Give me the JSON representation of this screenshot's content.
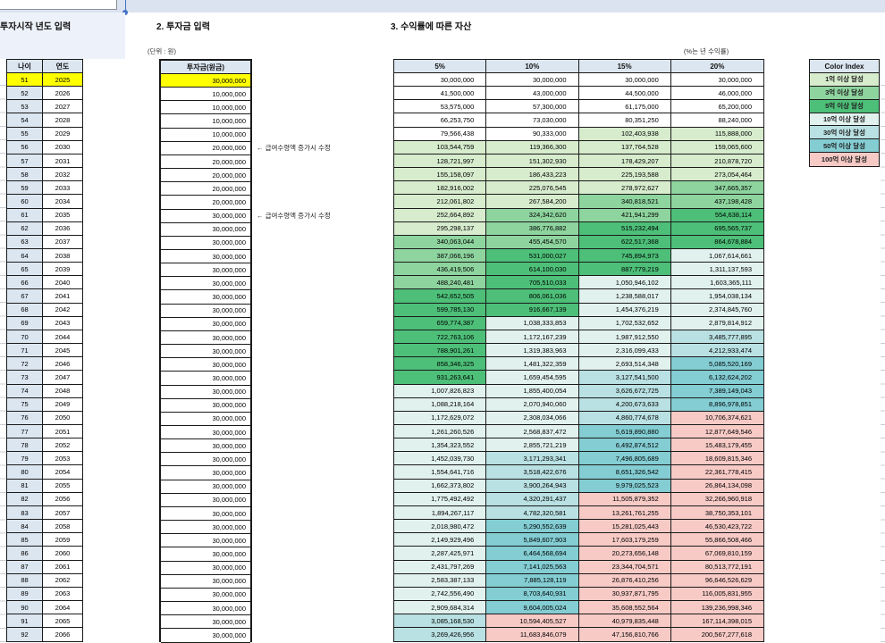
{
  "titles": {
    "section1": "투자시작 년도 입력",
    "section2": "2. 투자금 입력",
    "section3": "3. 수익률에 따른 자산"
  },
  "notes": {
    "unit": "(단위 : 원)",
    "rate": "(%는 년 수익률)"
  },
  "annotations": {
    "a2030": "← 급여수령액 증가시 수정",
    "a2035": "← 급여수령액 증가시 수정"
  },
  "left_table": {
    "headers": [
      "나이",
      "연도"
    ]
  },
  "invest_table": {
    "header": "투자금(원금)"
  },
  "asset_table": {
    "headers": [
      "5%",
      "10%",
      "15%",
      "20%"
    ]
  },
  "legend": {
    "header": "Color Index",
    "tiers": [
      {
        "label": "1억 이상 달성",
        "min": 100000000,
        "color": "#d6eccd"
      },
      {
        "label": "3억 이상 달성",
        "min": 300000000,
        "color": "#8ed49e"
      },
      {
        "label": "5억 이상 달성",
        "min": 500000000,
        "color": "#4dbf78"
      },
      {
        "label": "10억 이상 달성",
        "min": 1000000000,
        "color": "#e1f1ee"
      },
      {
        "label": "30억 이상 달성",
        "min": 3000000000,
        "color": "#b9e0e2"
      },
      {
        "label": "50억 이상 달성",
        "min": 5000000000,
        "color": "#83cdd3"
      },
      {
        "label": "100억 이상 달성",
        "min": 10000000000,
        "color": "#f7cac6"
      }
    ]
  },
  "colors": {
    "header_fill": "#dce6f1",
    "age_col_fill": "#dce6f1",
    "highlight": "#ffff00",
    "white": "#ffffff"
  },
  "table": {
    "ages": [
      51,
      52,
      53,
      54,
      55,
      56,
      57,
      58,
      59,
      60,
      61,
      62,
      63,
      64,
      65,
      66,
      67,
      68,
      69,
      70,
      71,
      72,
      73,
      74,
      75,
      76,
      77,
      78,
      79,
      80,
      81,
      82,
      83,
      84,
      85,
      86,
      87,
      88,
      89,
      90,
      91,
      92
    ],
    "years": [
      2025,
      2026,
      2027,
      2028,
      2029,
      2030,
      2031,
      2032,
      2033,
      2034,
      2035,
      2036,
      2037,
      2038,
      2039,
      2040,
      2041,
      2042,
      2043,
      2044,
      2045,
      2046,
      2047,
      2048,
      2049,
      2050,
      2051,
      2052,
      2053,
      2054,
      2055,
      2056,
      2057,
      2058,
      2059,
      2060,
      2061,
      2062,
      2063,
      2064,
      2065,
      2066
    ],
    "invest": [
      30000000,
      10000000,
      10000000,
      10000000,
      10000000,
      20000000,
      20000000,
      20000000,
      20000000,
      20000000,
      30000000,
      30000000,
      30000000,
      30000000,
      30000000,
      30000000,
      30000000,
      30000000,
      30000000,
      30000000,
      30000000,
      30000000,
      30000000,
      30000000,
      30000000,
      30000000,
      30000000,
      30000000,
      30000000,
      30000000,
      30000000,
      30000000,
      30000000,
      30000000,
      30000000,
      30000000,
      30000000,
      30000000,
      30000000,
      30000000,
      30000000,
      30000000
    ],
    "series": {
      "5%": [
        30000000,
        41500000,
        53575000,
        66253750,
        79566438,
        103544759,
        128721997,
        155158097,
        182916002,
        212061802,
        252664892,
        295298137,
        340063044,
        387066196,
        436419506,
        488240481,
        542652505,
        599785130,
        659774387,
        722763106,
        788901261,
        858346325,
        931263641,
        1007826823,
        1088218164,
        1172629072,
        1261260526,
        1354323552,
        1452039730,
        1554641716,
        1662373802,
        1775492492,
        1894267117,
        2018980472,
        2149929496,
        2287425971,
        2431797269,
        2583387133,
        2742556490,
        2909684314,
        3085168530,
        3269426956
      ],
      "10%": [
        30000000,
        43000000,
        57300000,
        73030000,
        90333000,
        119366300,
        151302930,
        186433223,
        225076545,
        267584200,
        324342620,
        386776882,
        455454570,
        531000027,
        614100030,
        705510033,
        806061036,
        916667139,
        1038333853,
        1172167239,
        1319383963,
        1481322359,
        1659454595,
        1855400054,
        2070940060,
        2308034066,
        2568837472,
        2855721219,
        3171293341,
        3518422676,
        3900264943,
        4320291437,
        4782320581,
        5290552639,
        5849607903,
        6464568694,
        7141025563,
        7885128119,
        8703640931,
        9604005024,
        10594405527,
        11683846079
      ],
      "15%": [
        30000000,
        44500000,
        61175000,
        80351250,
        102403938,
        137764528,
        178429207,
        225193588,
        278972627,
        340818521,
        421941299,
        515232494,
        622517368,
        745894973,
        887779219,
        1050946102,
        1238588017,
        1454376219,
        1702532652,
        1987912550,
        2316099433,
        2693514348,
        3127541500,
        3626672725,
        4200673633,
        4860774678,
        5619890880,
        6492874512,
        7496805689,
        8651326542,
        9979025523,
        11505879352,
        13261761255,
        15281025443,
        17603179259,
        20273656148,
        23344704571,
        26876410256,
        30937871795,
        35608552564,
        40979835448,
        47156810766
      ],
      "20%": [
        30000000,
        46000000,
        65200000,
        88240000,
        115888000,
        159065600,
        210878720,
        273054464,
        347665357,
        437198428,
        554638114,
        695565737,
        864678884,
        1067614661,
        1311137593,
        1603365111,
        1954038134,
        2374845760,
        2879814912,
        3485777895,
        4212933474,
        5085520169,
        6132624202,
        7389149043,
        8896978851,
        10706374621,
        12877649546,
        15483179455,
        18609815346,
        22361778415,
        26864134098,
        32266960918,
        38750353101,
        46530423722,
        55866508466,
        67069810159,
        80513772191,
        96646526629,
        116005831955,
        139236998346,
        167114398015,
        200567277618
      ]
    }
  }
}
